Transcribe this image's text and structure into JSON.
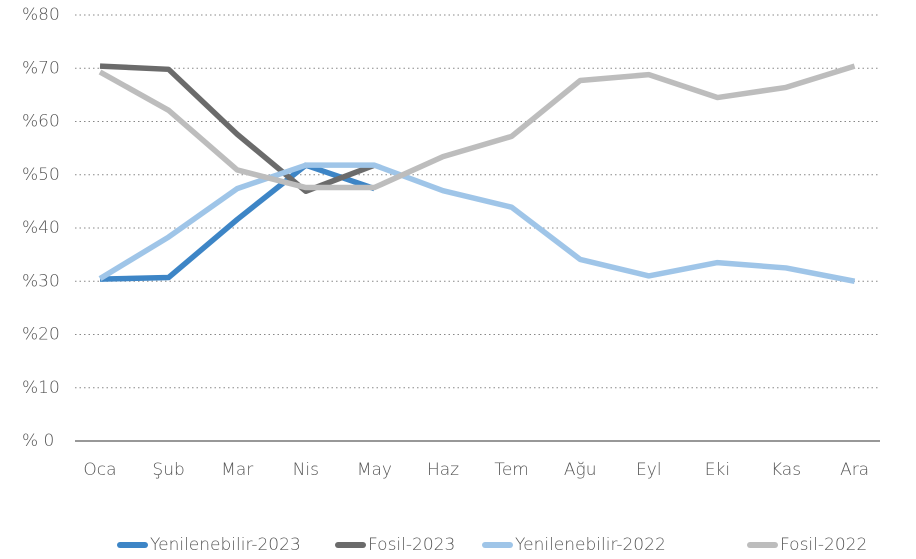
{
  "chart_data": {
    "type": "line",
    "categories": [
      "Oca",
      "Şub",
      "Mar",
      "Nis",
      "May",
      "Haz",
      "Tem",
      "Ağu",
      "Eyl",
      "Eki",
      "Kas",
      "Ara"
    ],
    "series": [
      {
        "name": "Yenilenebilir-2023",
        "color": "#3d85c6",
        "values": [
          30.4,
          30.7,
          41.6,
          51.8,
          47.4,
          null,
          null,
          null,
          null,
          null,
          null,
          null
        ]
      },
      {
        "name": "Fosil-2023",
        "color": "#6b6b6b",
        "values": [
          70.4,
          69.8,
          57.6,
          46.9,
          51.8,
          null,
          null,
          null,
          null,
          null,
          null,
          null
        ]
      },
      {
        "name": "Yenilenebilir-2022",
        "color": "#9fc5e8",
        "values": [
          30.5,
          38.3,
          47.4,
          51.8,
          51.8,
          47.0,
          43.9,
          34.1,
          31.0,
          33.5,
          32.5,
          30.0
        ]
      },
      {
        "name": "Fosil-2022",
        "color": "#bdbdbd",
        "values": [
          69.3,
          62.1,
          50.9,
          47.6,
          47.6,
          53.4,
          57.2,
          67.7,
          68.8,
          64.5,
          66.4,
          70.4
        ]
      }
    ],
    "ylim": [
      0,
      80
    ],
    "yticks": [
      {
        "value": 0,
        "label": "% 0"
      },
      {
        "value": 10,
        "label": "%10"
      },
      {
        "value": 20,
        "label": "%20"
      },
      {
        "value": 30,
        "label": "%30"
      },
      {
        "value": 40,
        "label": "%40"
      },
      {
        "value": 50,
        "label": "%50"
      },
      {
        "value": 60,
        "label": "%60"
      },
      {
        "value": 70,
        "label": "%70"
      },
      {
        "value": 80,
        "label": "%80"
      }
    ],
    "grid": true,
    "legend": "bottom"
  }
}
